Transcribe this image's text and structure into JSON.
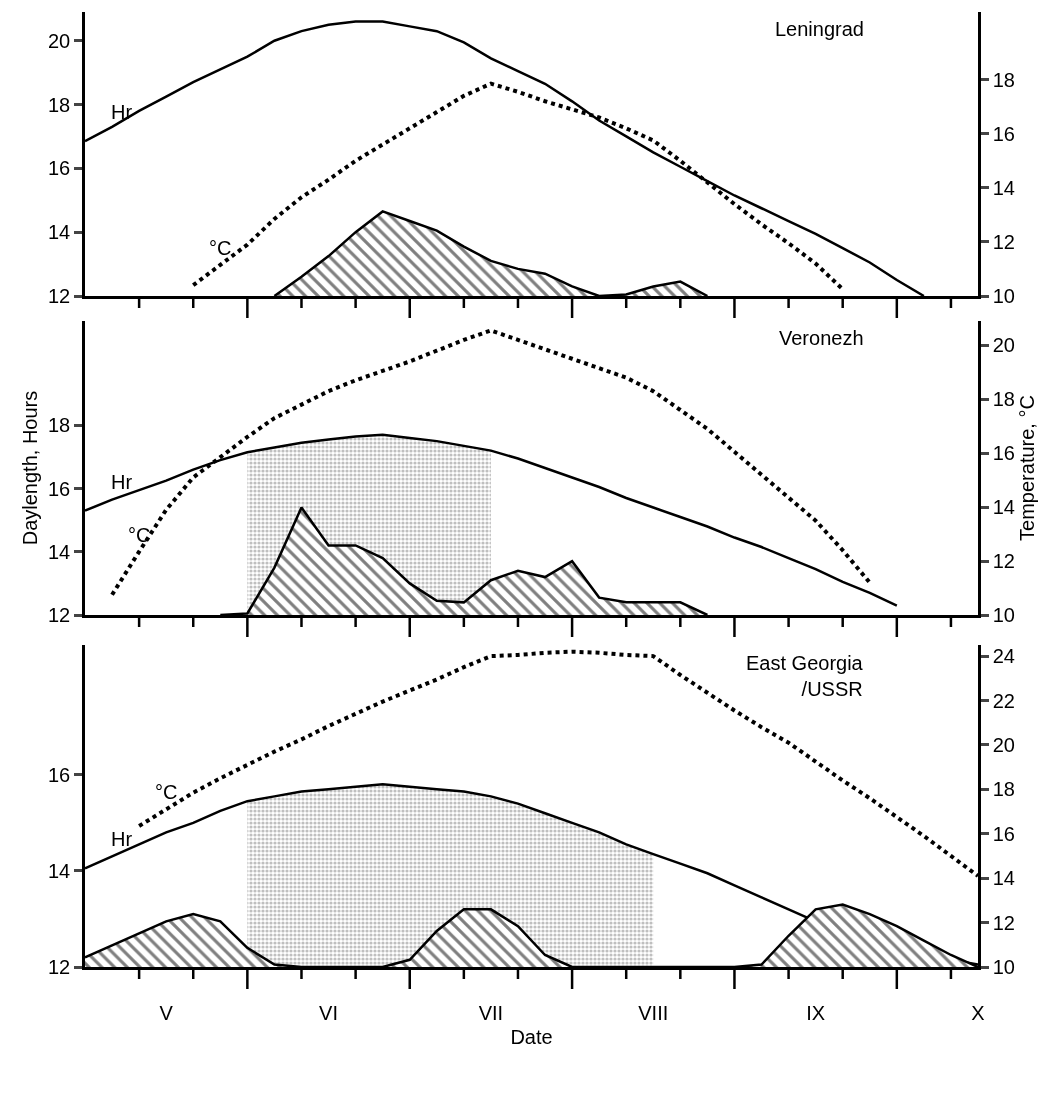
{
  "chart_data": [
    {
      "type": "line",
      "title": "Leningrad",
      "categories": [
        null,
        null,
        null,
        null,
        null,
        null,
        null,
        null,
        null,
        null,
        null,
        null,
        null,
        null,
        null,
        null,
        null,
        null,
        null,
        null,
        null,
        null,
        null,
        null,
        null,
        null,
        null,
        null,
        null,
        null,
        null,
        null,
        null,
        null
      ],
      "ylim": [
        12,
        20.9
      ],
      "y2lim": [
        10,
        20.5
      ],
      "yticks": [
        12,
        14,
        16,
        18,
        20
      ],
      "y2ticks": [
        10,
        12,
        14,
        16,
        18
      ],
      "tick_labels": "y",
      "legend": false,
      "series": [
        {
          "name": "Hr",
          "line_style": "solid",
          "color": "#000000",
          "values": [
            16.85,
            17.3,
            17.8,
            18.25,
            18.7,
            19.1,
            19.5,
            20.0,
            20.3,
            20.5,
            20.6,
            20.6,
            20.45,
            20.3,
            19.95,
            19.45,
            19.05,
            18.65,
            18.1,
            17.5,
            17.0,
            16.5,
            16.05,
            15.6,
            15.15,
            14.75,
            14.35,
            13.95,
            13.5,
            13.05,
            12.5,
            12.0,
            null,
            null
          ]
        },
        {
          "name": "°C",
          "axis": "y2",
          "line_style": "dotted",
          "color": "#000000",
          "values": [
            null,
            null,
            null,
            null,
            10.4,
            11.15,
            11.9,
            12.85,
            13.65,
            14.3,
            15.0,
            15.6,
            16.2,
            16.8,
            17.4,
            17.85,
            17.55,
            17.2,
            16.9,
            16.6,
            16.2,
            15.75,
            15.0,
            14.2,
            13.4,
            12.65,
            11.95,
            11.2,
            10.25,
            null,
            null,
            null,
            null,
            null
          ]
        },
        {
          "type": "area",
          "line_style": "solid",
          "color": "#000000",
          "values": [
            null,
            null,
            null,
            null,
            null,
            null,
            null,
            12,
            12.6,
            13.25,
            14.0,
            14.65,
            14.35,
            14.05,
            13.55,
            13.1,
            12.85,
            12.7,
            12.3,
            12.0,
            12.05,
            12.3,
            12.45,
            12.0,
            null,
            null,
            null,
            null,
            null,
            null,
            null,
            null,
            null,
            null
          ]
        }
      ]
    },
    {
      "type": "line",
      "title": "Veronezh",
      "ylabel": "Daylength, Hours",
      "y2label": "Temperature, °C",
      "categories": [
        null,
        null,
        null,
        null,
        null,
        null,
        null,
        null,
        null,
        null,
        null,
        null,
        null,
        null,
        null,
        null,
        null,
        null,
        null,
        null,
        null,
        null,
        null,
        null,
        null,
        null,
        null,
        null,
        null,
        null,
        null,
        null,
        null,
        null
      ],
      "ylim": [
        12,
        21.3
      ],
      "y2lim": [
        10,
        20.9
      ],
      "yticks": [
        12,
        14,
        16,
        18
      ],
      "y2ticks": [
        10,
        12,
        14,
        16,
        18,
        20
      ],
      "tick_labels": "y",
      "legend": false,
      "series": [
        {
          "type": "area",
          "color": "#808080",
          "values": [
            null,
            null,
            null,
            null,
            null,
            null,
            17.15,
            17.3,
            17.45,
            17.55,
            17.65,
            17.7,
            17.6,
            17.5,
            17.35,
            17.2,
            null,
            null,
            null,
            null,
            null,
            null,
            null,
            null,
            null,
            null,
            null,
            null,
            null,
            null,
            null,
            null,
            null,
            null
          ]
        },
        {
          "name": "Hr",
          "line_style": "solid",
          "color": "#000000",
          "values": [
            15.3,
            15.65,
            15.95,
            16.25,
            16.6,
            16.9,
            17.15,
            17.3,
            17.45,
            17.55,
            17.65,
            17.7,
            17.6,
            17.5,
            17.35,
            17.2,
            16.95,
            16.65,
            16.35,
            16.05,
            15.7,
            15.4,
            15.1,
            14.8,
            14.45,
            14.15,
            13.8,
            13.45,
            13.05,
            12.7,
            12.3,
            null,
            null,
            null
          ]
        },
        {
          "name": "°C",
          "axis": "y2",
          "line_style": "dotted",
          "color": "#000000",
          "values": [
            null,
            10.75,
            12.35,
            13.9,
            15.1,
            15.85,
            16.6,
            17.3,
            17.8,
            18.3,
            18.7,
            19.05,
            19.4,
            19.8,
            20.2,
            20.55,
            20.2,
            19.85,
            19.5,
            19.15,
            18.8,
            18.3,
            17.6,
            16.9,
            16.05,
            15.2,
            14.35,
            13.5,
            12.4,
            11.2,
            null,
            null,
            null,
            null
          ]
        },
        {
          "type": "area",
          "line_style": "solid",
          "color": "#000000",
          "values": [
            null,
            null,
            null,
            null,
            null,
            12.0,
            12.05,
            13.5,
            15.4,
            14.2,
            14.2,
            13.8,
            13.0,
            12.45,
            12.4,
            13.1,
            13.4,
            13.2,
            13.7,
            12.55,
            12.4,
            12.4,
            12.4,
            12.0,
            null,
            null,
            null,
            null,
            null,
            null,
            null,
            null,
            null,
            null
          ]
        }
      ]
    },
    {
      "type": "line",
      "title": "East Georgia\n/USSR",
      "xlabel": "Date",
      "categories": [
        null,
        null,
        null,
        "V",
        null,
        null,
        null,
        null,
        null,
        "VI",
        null,
        null,
        null,
        null,
        null,
        "VII",
        null,
        null,
        null,
        null,
        null,
        "VIII",
        null,
        null,
        null,
        null,
        null,
        "IX",
        null,
        null,
        null,
        null,
        null,
        "X"
      ],
      "ylim": [
        12,
        18.7
      ],
      "y2lim": [
        10,
        24.5
      ],
      "yticks": [
        12,
        14,
        16
      ],
      "y2ticks": [
        10,
        12,
        14,
        16,
        18,
        20,
        22,
        24
      ],
      "legend": false,
      "series": [
        {
          "type": "area",
          "color": "#808080",
          "values": [
            null,
            null,
            null,
            null,
            null,
            null,
            15.45,
            15.55,
            15.65,
            15.7,
            15.75,
            15.8,
            15.75,
            15.7,
            15.65,
            15.55,
            15.4,
            15.2,
            15.0,
            14.8,
            14.55,
            14.35,
            null,
            null,
            null,
            null,
            null,
            null,
            null,
            null,
            null,
            null,
            null,
            null
          ]
        },
        {
          "name": "Hr",
          "line_style": "solid",
          "color": "#000000",
          "values": [
            14.05,
            14.3,
            14.55,
            14.8,
            15.0,
            15.25,
            15.45,
            15.55,
            15.65,
            15.7,
            15.75,
            15.8,
            15.75,
            15.7,
            15.65,
            15.55,
            15.4,
            15.2,
            15.0,
            14.8,
            14.55,
            14.35,
            14.15,
            13.95,
            13.7,
            13.45,
            13.2,
            12.95,
            12.7,
            12.5,
            12.35,
            12.25,
            12.15,
            12.05
          ]
        },
        {
          "name": "°C",
          "axis": "y2",
          "line_style": "dotted",
          "color": "#000000",
          "values": [
            null,
            null,
            16.35,
            17.1,
            17.85,
            18.5,
            19.1,
            19.7,
            20.25,
            20.85,
            21.4,
            21.95,
            22.45,
            22.95,
            23.5,
            24.0,
            24.05,
            24.15,
            24.2,
            24.15,
            24.05,
            24.0,
            23.15,
            22.35,
            21.55,
            20.8,
            20.1,
            19.25,
            18.4,
            17.6,
            16.75,
            15.9,
            15.0,
            14.1
          ]
        },
        {
          "type": "area",
          "line_style": "solid",
          "color": "#000000",
          "values": [
            12.2,
            12.45,
            12.7,
            12.95,
            13.1,
            12.95,
            12.4,
            12.05,
            12.0,
            12.0,
            12.0,
            12.0,
            12.15,
            12.75,
            13.2,
            13.2,
            12.85,
            12.25,
            12.0,
            12.0,
            12.0,
            12.0,
            12.0,
            12.0,
            12.0,
            12.05,
            12.65,
            13.2,
            13.3,
            13.1,
            12.85,
            12.55,
            12.25,
            12.0
          ]
        }
      ]
    }
  ]
}
